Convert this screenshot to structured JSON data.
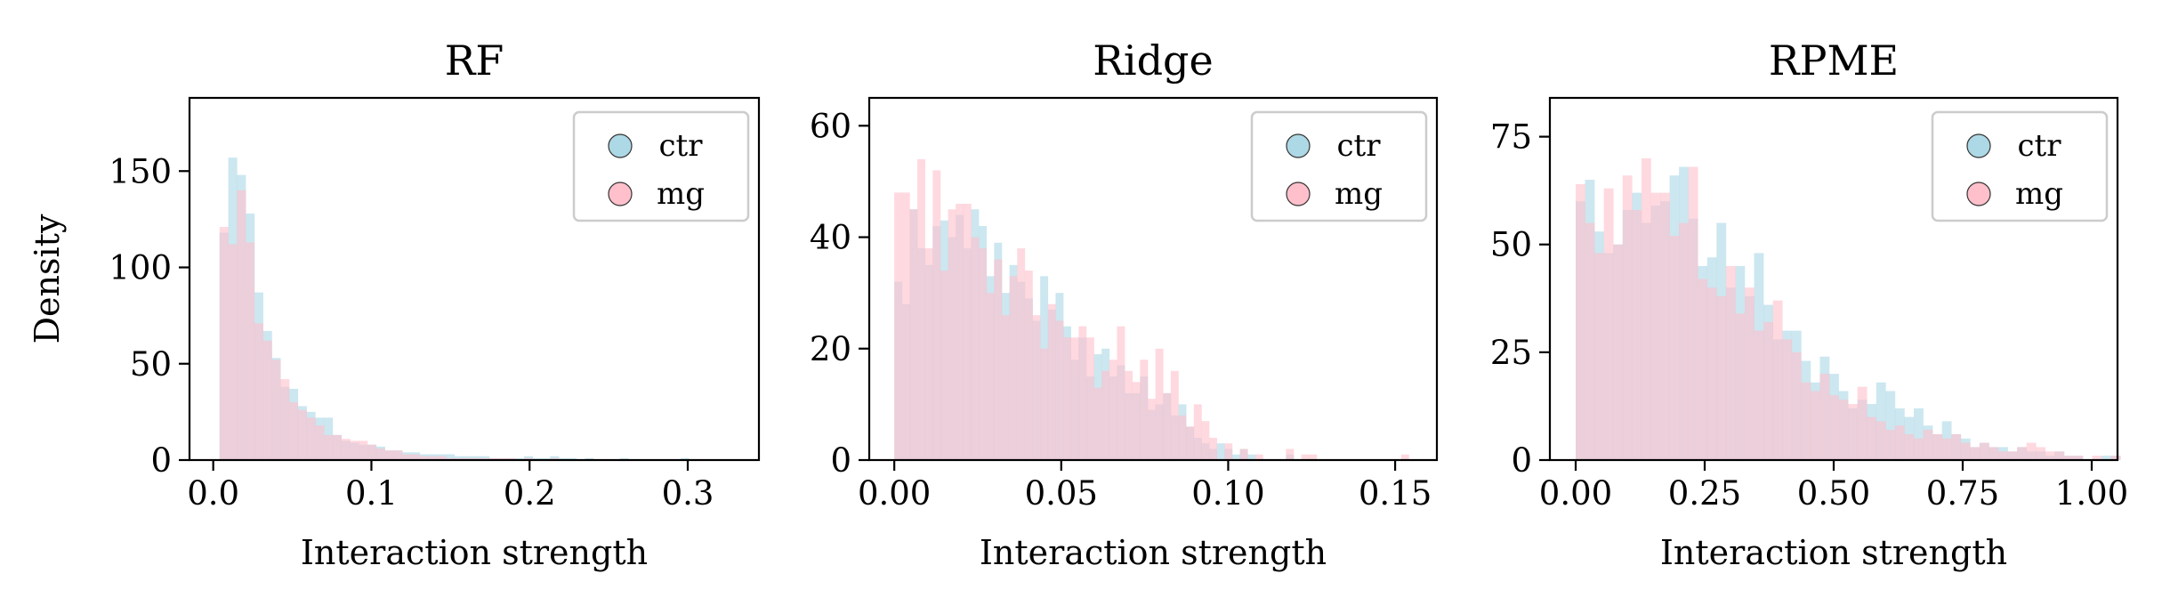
{
  "chart_data": [
    {
      "type": "histogram",
      "title": "RF",
      "xlabel": "Interaction strength",
      "ylabel": "Density",
      "xlim": [
        -0.015,
        0.345
      ],
      "ylim": [
        0,
        188
      ],
      "xticks": [
        0.0,
        0.1,
        0.2,
        0.3
      ],
      "xtick_labels": [
        "0.0",
        "0.1",
        "0.2",
        "0.3"
      ],
      "yticks": [
        0,
        50,
        100,
        150
      ],
      "ytick_labels": [
        "0",
        "50",
        "100",
        "150"
      ],
      "legend_position": "top-right",
      "series": [
        {
          "name": "ctr",
          "color": "#add8e6",
          "x0": 0.004,
          "bin_width": 0.0055,
          "values": [
            118,
            157,
            148,
            128,
            87,
            67,
            53,
            38,
            37,
            28,
            25,
            22,
            22,
            13,
            10,
            9,
            8,
            8,
            7,
            5,
            5,
            4,
            4,
            3,
            3,
            3,
            3,
            2,
            2,
            2,
            2,
            1,
            1,
            1,
            1,
            2,
            1,
            1,
            2,
            1,
            1,
            0,
            1,
            0,
            0,
            0,
            1,
            0,
            0,
            0,
            0,
            0,
            0,
            1
          ]
        },
        {
          "name": "mg",
          "color": "#ffc0cb",
          "x0": 0.004,
          "bin_width": 0.0055,
          "values": [
            121,
            112,
            140,
            113,
            71,
            62,
            52,
            42,
            30,
            26,
            22,
            18,
            13,
            13,
            11,
            10,
            10,
            8,
            6,
            5,
            5,
            3,
            3,
            2,
            2,
            2,
            1,
            1,
            1,
            1,
            1,
            1,
            1,
            1,
            0,
            1,
            0,
            0,
            1,
            0,
            0,
            0,
            0,
            0,
            0,
            0,
            0,
            0,
            0,
            0,
            0,
            0,
            0,
            0
          ]
        }
      ]
    },
    {
      "type": "histogram",
      "title": "Ridge",
      "xlabel": "Interaction strength",
      "ylabel": "",
      "xlim": [
        -0.0075,
        0.1625
      ],
      "ylim": [
        0,
        65
      ],
      "xticks": [
        0.0,
        0.05,
        0.1,
        0.15
      ],
      "xtick_labels": [
        "0.00",
        "0.05",
        "0.10",
        "0.15"
      ],
      "yticks": [
        0,
        20,
        40,
        60
      ],
      "ytick_labels": [
        "0",
        "20",
        "40",
        "60"
      ],
      "legend_position": "top-right",
      "series": [
        {
          "name": "ctr",
          "color": "#add8e6",
          "x0": 0.0,
          "bin_width": 0.0023,
          "values": [
            32,
            28,
            45,
            38,
            35,
            42,
            43,
            40,
            44,
            38,
            45,
            42,
            33,
            39,
            30,
            35,
            32,
            29,
            25,
            33,
            27,
            30,
            24,
            18,
            22,
            15,
            19,
            20,
            15,
            17,
            12,
            12,
            15,
            9,
            10,
            12,
            8,
            10,
            6,
            4,
            3,
            2,
            3,
            2,
            1,
            2,
            1,
            0,
            0,
            0,
            0,
            1,
            0,
            0,
            0,
            0,
            0,
            0,
            0,
            0,
            0,
            0,
            0,
            0,
            0,
            0,
            0
          ]
        },
        {
          "name": "mg",
          "color": "#ffc0cb",
          "x0": 0.0,
          "bin_width": 0.0023,
          "values": [
            48,
            48,
            45,
            54,
            38,
            52,
            34,
            45,
            46,
            46,
            40,
            38,
            30,
            36,
            26,
            33,
            38,
            34,
            26,
            20,
            28,
            25,
            22,
            22,
            24,
            22,
            13,
            16,
            18,
            24,
            16,
            14,
            18,
            11,
            20,
            12,
            16,
            8,
            6,
            10,
            7,
            4,
            0,
            3,
            0,
            2,
            0,
            1,
            0,
            0,
            0,
            2,
            0,
            1,
            1,
            0,
            0,
            0,
            0,
            0,
            0,
            0,
            0,
            0,
            0,
            0,
            1
          ]
        }
      ]
    },
    {
      "type": "histogram",
      "title": "RPME",
      "xlabel": "Interaction strength",
      "ylabel": "",
      "xlim": [
        -0.05,
        1.05
      ],
      "ylim": [
        0,
        84
      ],
      "xticks": [
        0.0,
        0.25,
        0.5,
        0.75,
        1.0
      ],
      "xtick_labels": [
        "0.00",
        "0.25",
        "0.50",
        "0.75",
        "1.00"
      ],
      "yticks": [
        0,
        25,
        50,
        75
      ],
      "ytick_labels": [
        "0",
        "25",
        "50",
        "75"
      ],
      "legend_position": "top-right",
      "series": [
        {
          "name": "ctr",
          "color": "#add8e6",
          "x0": 0.0,
          "bin_width": 0.0182,
          "values": [
            60,
            65,
            53,
            48,
            50,
            58,
            62,
            55,
            59,
            60,
            66,
            68,
            56,
            45,
            47,
            55,
            40,
            45,
            38,
            48,
            36,
            28,
            30,
            30,
            23,
            18,
            24,
            20,
            16,
            12,
            14,
            13,
            18,
            16,
            12,
            10,
            12,
            8,
            6,
            9,
            6,
            5,
            3,
            4,
            3,
            3,
            2,
            3,
            2,
            2,
            1,
            2,
            1,
            1,
            0,
            0,
            1,
            1,
            0,
            0,
            0,
            0,
            0,
            0,
            0,
            0,
            0,
            0,
            0,
            0,
            0,
            0,
            0,
            0,
            0,
            0,
            0,
            0,
            0,
            0,
            0,
            0,
            0,
            0,
            0,
            0,
            0,
            0,
            0,
            0,
            0,
            1,
            0,
            0,
            0,
            0,
            0,
            0,
            0,
            0,
            0,
            0,
            0,
            0,
            0,
            0,
            0,
            0,
            0,
            0,
            0,
            0,
            0,
            0,
            0,
            0,
            0,
            0,
            0,
            0,
            0,
            0,
            0,
            0,
            0,
            0,
            0,
            0,
            0,
            0,
            0,
            0,
            0,
            0,
            0,
            0,
            0,
            0,
            0,
            0,
            0,
            0,
            0,
            0,
            0,
            0,
            0,
            0,
            0,
            0,
            0,
            1
          ]
        },
        {
          "name": "mg",
          "color": "#ffc0cb",
          "x0": 0.0,
          "bin_width": 0.0182,
          "values": [
            64,
            55,
            48,
            63,
            50,
            66,
            58,
            70,
            62,
            62,
            52,
            55,
            68,
            42,
            40,
            38,
            45,
            34,
            40,
            30,
            32,
            37,
            28,
            25,
            18,
            16,
            20,
            15,
            14,
            13,
            17,
            10,
            9,
            7,
            8,
            6,
            5,
            7,
            6,
            5,
            6,
            4,
            3,
            4,
            3,
            2,
            2,
            3,
            4,
            3,
            2,
            2,
            1,
            1,
            0,
            1,
            0,
            1,
            0,
            0,
            0,
            0,
            0,
            0,
            0,
            0,
            0,
            0,
            0,
            0,
            0,
            0,
            0,
            0,
            0,
            0,
            0,
            0,
            0,
            0,
            0,
            0,
            0,
            0,
            0,
            0,
            0,
            0,
            0,
            0,
            0,
            0,
            0,
            0,
            0,
            0,
            0,
            0,
            0,
            0,
            0,
            0,
            0,
            0,
            0,
            0,
            0,
            0,
            0,
            0,
            0,
            0,
            0,
            0,
            0,
            0,
            0,
            0,
            0,
            0,
            0,
            0,
            0,
            0,
            0,
            0,
            0,
            0,
            0,
            0,
            0,
            0,
            0,
            0,
            0,
            0,
            0,
            0,
            0,
            0,
            0,
            0,
            0,
            0,
            0,
            0,
            0,
            0,
            0,
            0,
            0,
            0,
            0,
            0,
            0,
            0
          ]
        }
      ]
    }
  ]
}
